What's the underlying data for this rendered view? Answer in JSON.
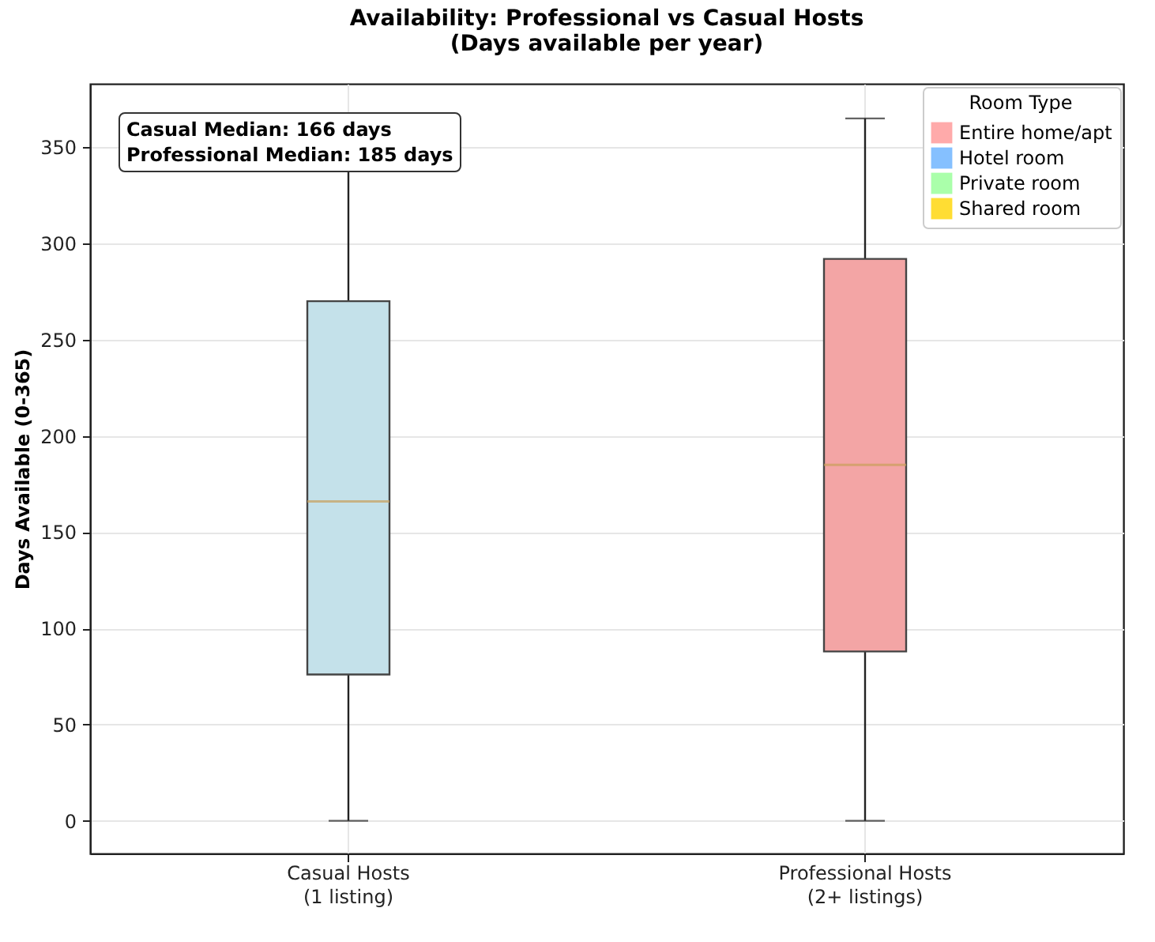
{
  "chart_data": {
    "type": "box",
    "title": "Availability: Professional vs Casual Hosts",
    "subtitle": "(Days available per year)",
    "ylabel": "Days Available (0-365)",
    "categories": [
      "Casual Hosts\n(1 listing)",
      "Professional Hosts\n(2+ listings)"
    ],
    "boxes": [
      {
        "low": 0,
        "q1": 76,
        "median": 166,
        "q3": 270,
        "high": 365
      },
      {
        "low": 0,
        "q1": 88,
        "median": 185,
        "q3": 292,
        "high": 365
      }
    ],
    "colors": [
      "#c4e1ea",
      "#f3a5a5"
    ],
    "legend_title": "Room Type",
    "series": [
      {
        "name": "Entire home/apt",
        "color": "#ffaaaa",
        "values": [
          null,
          null
        ]
      },
      {
        "name": "Hotel room",
        "color": "#85c0ff",
        "values": [
          null,
          null
        ]
      },
      {
        "name": "Private room",
        "color": "#aaffaa",
        "values": [
          null,
          null
        ]
      },
      {
        "name": "Shared room",
        "color": "#ffdd33",
        "values": [
          null,
          null
        ]
      }
    ],
    "ylim": [
      -17,
      383
    ],
    "yticks": [
      0,
      50,
      100,
      150,
      200,
      250,
      300,
      350
    ],
    "grid": true,
    "legend": "top right",
    "annotations": [
      "Casual Median: 166 days\nProfessional Median: 185 days"
    ]
  }
}
